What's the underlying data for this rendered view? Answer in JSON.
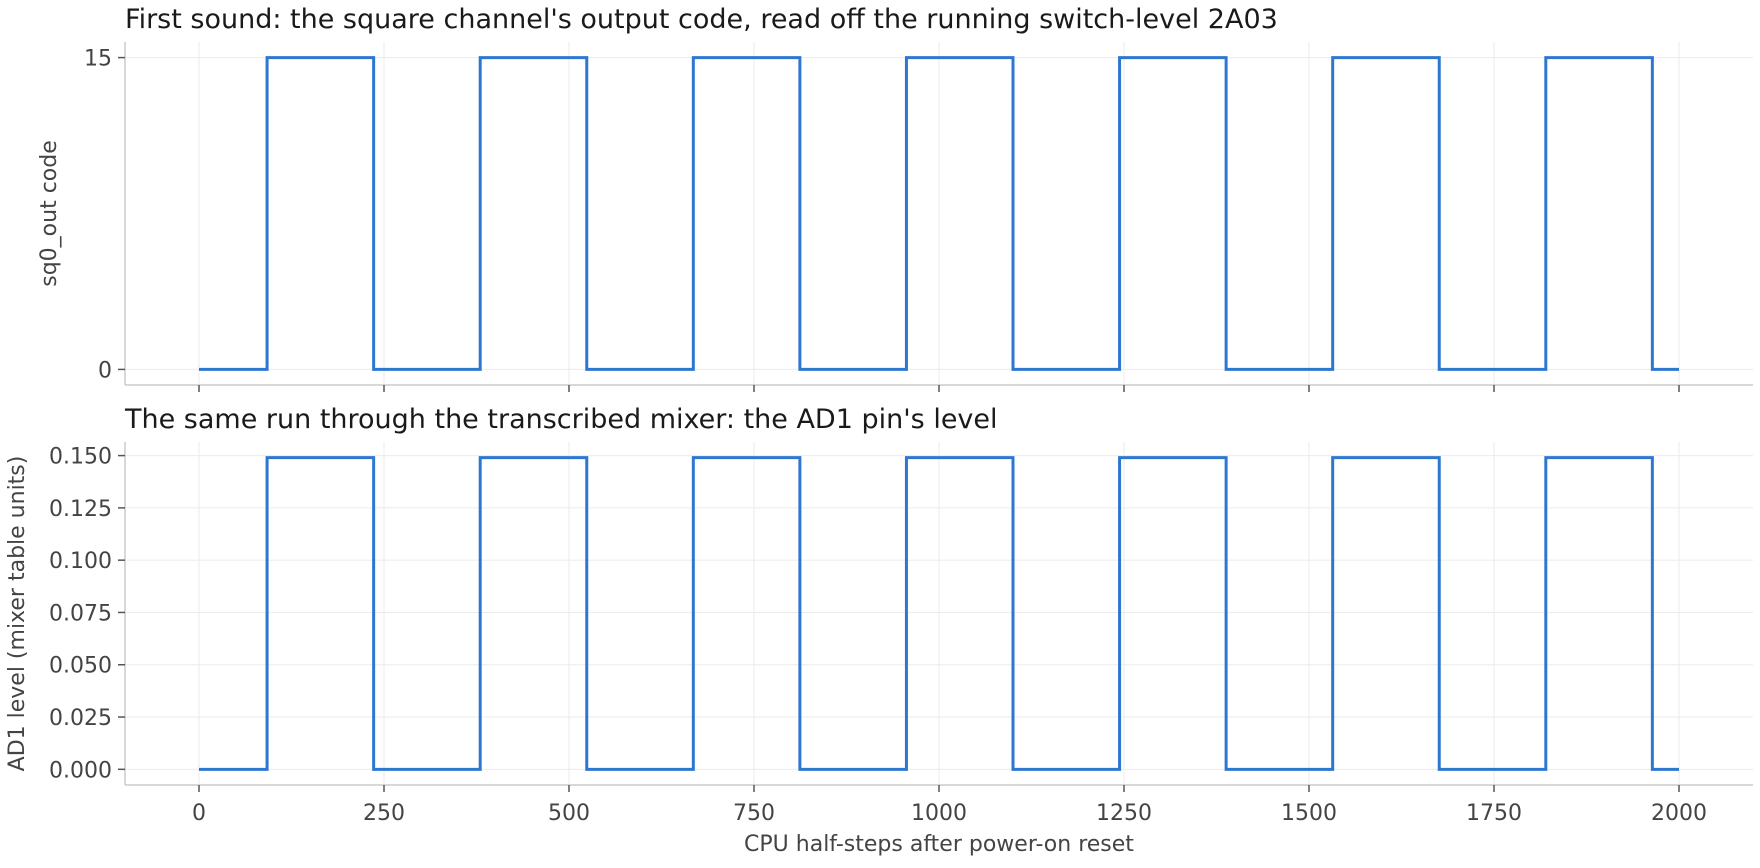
{
  "chart_data": [
    {
      "type": "line",
      "step": "post",
      "title": "First sound: the square channel's output code, read off the running switch-level 2A03",
      "xlabel": "",
      "ylabel": "sq0_out code",
      "xlim": [
        -100,
        2100
      ],
      "ylim": [
        -0.75,
        15.75
      ],
      "x_ticks": [
        0,
        250,
        500,
        750,
        1000,
        1250,
        1500,
        1750,
        2000
      ],
      "x_tick_labels_shown": false,
      "y_ticks": [
        0,
        15
      ],
      "y_tick_labels": [
        "0",
        "15"
      ],
      "grid": true,
      "color": "#2e77d0",
      "series": [
        {
          "x": [
            0,
            92,
            236,
            380,
            524,
            668,
            812,
            956,
            1100,
            1244,
            1388,
            1532,
            1676,
            1820,
            1964,
            2000
          ],
          "y": [
            0,
            15,
            0,
            15,
            0,
            15,
            0,
            15,
            0,
            15,
            0,
            15,
            0,
            15,
            0,
            0
          ]
        }
      ]
    },
    {
      "type": "line",
      "step": "post",
      "title": "The same run through the transcribed mixer: the AD1 pin's level",
      "xlabel": "CPU half-steps after power-on reset",
      "ylabel": "AD1 level (mixer table units)",
      "xlim": [
        -100,
        2100
      ],
      "ylim": [
        -0.0075,
        0.1565
      ],
      "x_ticks": [
        0,
        250,
        500,
        750,
        1000,
        1250,
        1500,
        1750,
        2000
      ],
      "x_tick_labels": [
        "0",
        "250",
        "500",
        "750",
        "1000",
        "1250",
        "1500",
        "1750",
        "2000"
      ],
      "y_ticks": [
        0,
        0.025,
        0.05,
        0.075,
        0.1,
        0.125,
        0.15
      ],
      "y_tick_labels": [
        "0.000",
        "0.025",
        "0.050",
        "0.075",
        "0.100",
        "0.125",
        "0.150"
      ],
      "grid": true,
      "color": "#2e77d0",
      "series": [
        {
          "x": [
            0,
            92,
            236,
            380,
            524,
            668,
            812,
            956,
            1100,
            1244,
            1388,
            1532,
            1676,
            1820,
            1964,
            2000
          ],
          "y": [
            0,
            0.149,
            0,
            0.149,
            0,
            0.149,
            0,
            0.149,
            0,
            0.149,
            0,
            0.149,
            0,
            0.149,
            0,
            0
          ]
        }
      ]
    }
  ]
}
